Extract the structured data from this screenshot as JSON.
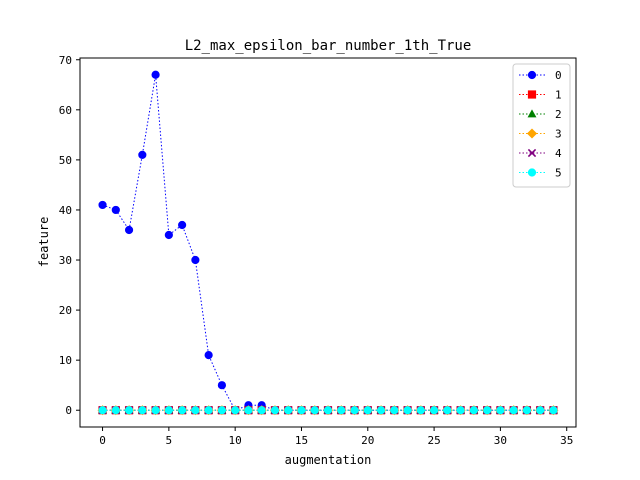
{
  "chart_data": {
    "type": "line",
    "title": "L2_max_epsilon_bar_number_1th_True",
    "xlabel": "augmentation",
    "ylabel": "feature",
    "xlim": [
      -1.7,
      35.7
    ],
    "ylim": [
      -3.35,
      70.35
    ],
    "xticks": [
      0,
      5,
      10,
      15,
      20,
      25,
      30,
      35
    ],
    "yticks": [
      0,
      10,
      20,
      30,
      40,
      50,
      60,
      70
    ],
    "grid": false,
    "legend_position": "top-right",
    "x": [
      0,
      1,
      2,
      3,
      4,
      5,
      6,
      7,
      8,
      9,
      10,
      11,
      12,
      13,
      14,
      15,
      16,
      17,
      18,
      19,
      20,
      21,
      22,
      23,
      24,
      25,
      26,
      27,
      28,
      29,
      30,
      31,
      32,
      33,
      34
    ],
    "series": [
      {
        "name": "0",
        "color": "#0000ff",
        "marker": "circle",
        "values": [
          41,
          40,
          36,
          51,
          67,
          35,
          37,
          30,
          11,
          5,
          0,
          1,
          1,
          0,
          0,
          0,
          0,
          0,
          0,
          0,
          0,
          0,
          0,
          0,
          0,
          0,
          0,
          0,
          0,
          0,
          0,
          0,
          0,
          0,
          0
        ]
      },
      {
        "name": "1",
        "color": "#ff0000",
        "marker": "square",
        "values": [
          0,
          0,
          0,
          0,
          0,
          0,
          0,
          0,
          0,
          0,
          0,
          0,
          0,
          0,
          0,
          0,
          0,
          0,
          0,
          0,
          0,
          0,
          0,
          0,
          0,
          0,
          0,
          0,
          0,
          0,
          0,
          0,
          0,
          0,
          0
        ]
      },
      {
        "name": "2",
        "color": "#008000",
        "marker": "triangle",
        "values": [
          0,
          0,
          0,
          0,
          0,
          0,
          0,
          0,
          0,
          0,
          0,
          0,
          0,
          0,
          0,
          0,
          0,
          0,
          0,
          0,
          0,
          0,
          0,
          0,
          0,
          0,
          0,
          0,
          0,
          0,
          0,
          0,
          0,
          0,
          0
        ]
      },
      {
        "name": "3",
        "color": "#ffa500",
        "marker": "diamond",
        "values": [
          0,
          0,
          0,
          0,
          0,
          0,
          0,
          0,
          0,
          0,
          0,
          0,
          0,
          0,
          0,
          0,
          0,
          0,
          0,
          0,
          0,
          0,
          0,
          0,
          0,
          0,
          0,
          0,
          0,
          0,
          0,
          0,
          0,
          0,
          0
        ]
      },
      {
        "name": "4",
        "color": "#800080",
        "marker": "x",
        "values": [
          0,
          0,
          0,
          0,
          0,
          0,
          0,
          0,
          0,
          0,
          0,
          0,
          0,
          0,
          0,
          0,
          0,
          0,
          0,
          0,
          0,
          0,
          0,
          0,
          0,
          0,
          0,
          0,
          0,
          0,
          0,
          0,
          0,
          0,
          0
        ]
      },
      {
        "name": "5",
        "color": "#00ffff",
        "marker": "circle",
        "values": [
          0,
          0,
          0,
          0,
          0,
          0,
          0,
          0,
          0,
          0,
          0,
          0,
          0,
          0,
          0,
          0,
          0,
          0,
          0,
          0,
          0,
          0,
          0,
          0,
          0,
          0,
          0,
          0,
          0,
          0,
          0,
          0,
          0,
          0,
          0
        ]
      }
    ]
  }
}
